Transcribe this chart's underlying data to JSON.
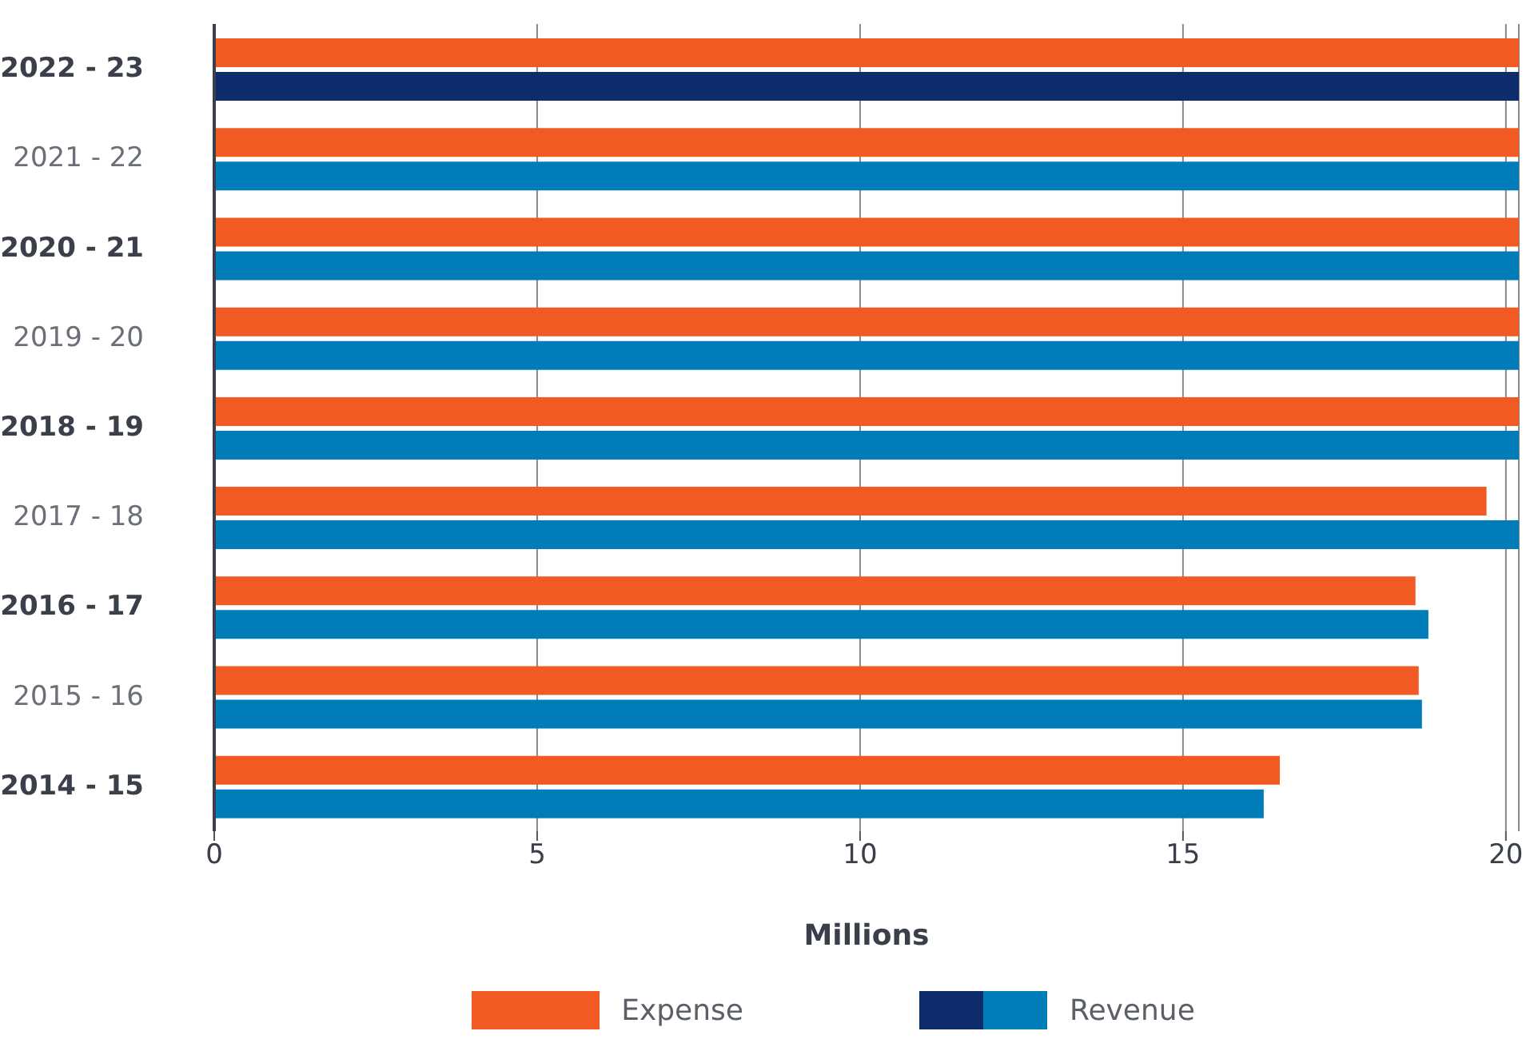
{
  "chart_data": {
    "type": "bar",
    "orientation": "horizontal",
    "xlabel": "Millions",
    "categories": [
      "2022 - 23",
      "2021 - 22",
      "2020 - 21",
      "2019 - 20",
      "2018 - 19",
      "2017 - 18",
      "2016 - 17",
      "2015 - 16",
      "2014 - 15"
    ],
    "series": [
      {
        "name": "Expense",
        "color": "#f15a22",
        "values": [
          20.2,
          20.2,
          20.2,
          20.2,
          20.2,
          19.7,
          18.6,
          18.65,
          16.5
        ]
      },
      {
        "name": "Revenue",
        "colors": [
          "#0e2b6b",
          "#007db8",
          "#007db8",
          "#007db8",
          "#007db8",
          "#007db8",
          "#007db8",
          "#007db8",
          "#007db8"
        ],
        "values": [
          20.2,
          20.2,
          20.2,
          20.2,
          20.2,
          20.2,
          18.8,
          18.7,
          16.25
        ]
      }
    ],
    "xlim": [
      0,
      20.2
    ],
    "xticks": [
      0,
      5,
      10,
      15,
      20
    ],
    "grid": "x",
    "legend": "bottom"
  }
}
